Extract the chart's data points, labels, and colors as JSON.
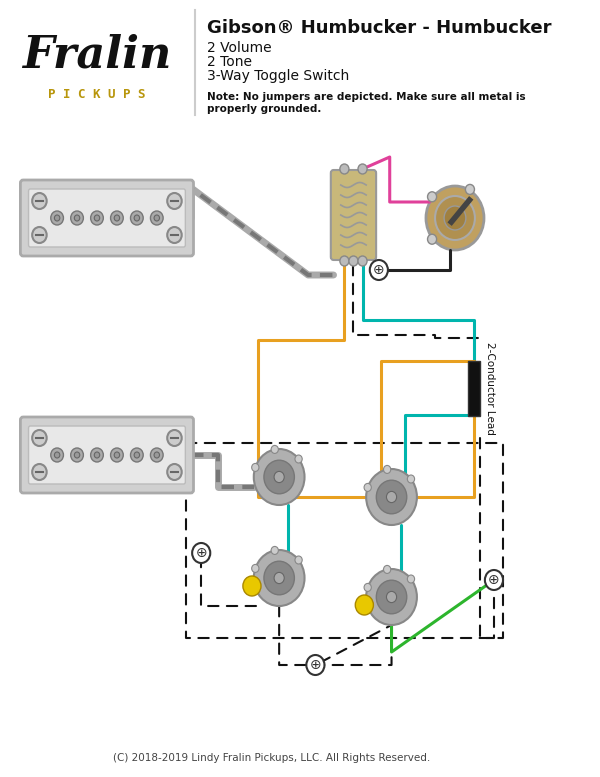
{
  "title": "Gibson® Humbucker - Humbucker",
  "subtitle_lines": [
    "2 Volume",
    "2 Tone",
    "3-Way Toggle Switch"
  ],
  "note": "Note: No jumpers are depicted. Make sure all metal is\nproperly grounded.",
  "copyright": "(C) 2018-2019 Lindy Fralin Pickups, LLC. All Rights Reserved.",
  "bg_color": "#ffffff",
  "pickups_text_color": "#b8960c",
  "wire_colors": {
    "pink": "#e0409a",
    "teal": "#00b5ad",
    "orange": "#e8a020",
    "black": "#222222",
    "gray_braid": "#aaaaaa",
    "green": "#2db52d",
    "red": "#dd2222"
  },
  "component_colors": {
    "pickup_body": "#d0d0d0",
    "pickup_top": "#e8e8e8",
    "pickup_frame": "#aaaaaa",
    "pot_body": "#b0b0b0",
    "pot_knob": "#888888",
    "switch_body": "#c8b87a",
    "ground_symbol": "#333333",
    "capacitor_yellow": "#e8c800"
  }
}
